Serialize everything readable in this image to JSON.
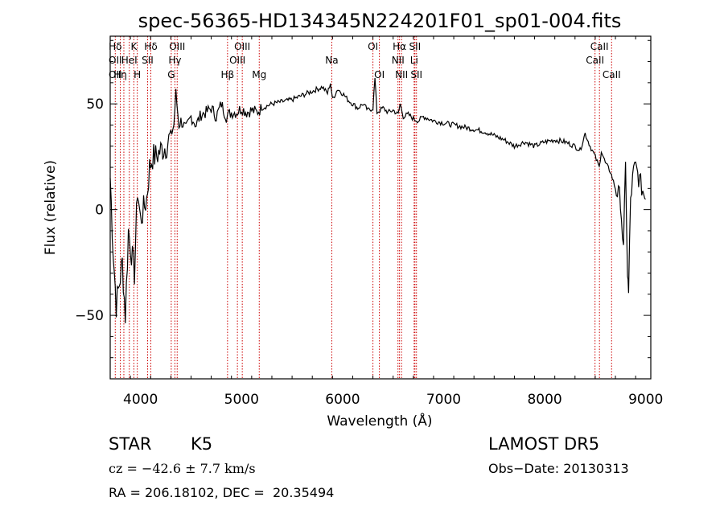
{
  "chart_data": {
    "type": "line",
    "title": "spec-56365-HD134345N224201F01_sp01-004.fits",
    "xlabel": "Wavelength (Å)",
    "ylabel": "Flux (relative)",
    "xlim": [
      3700,
      9050
    ],
    "ylim": [
      -80,
      82
    ],
    "xticks": [
      4000,
      5000,
      6000,
      7000,
      8000,
      9000
    ],
    "yticks": [
      -50,
      0,
      50
    ],
    "grid": false,
    "series": [
      {
        "values_note": "",
        "x": [
          3700,
          3730,
          3760,
          3790,
          3820,
          3850,
          3880,
          3910,
          3940,
          3970,
          4000,
          4030,
          4060,
          4090,
          4120,
          4150,
          4200,
          4250,
          4300,
          4330,
          4350,
          4380,
          4400,
          4450,
          4500,
          4550,
          4600,
          4650,
          4700,
          4750,
          4800,
          4850,
          4900,
          4950,
          5000,
          5050,
          5100,
          5150,
          5200,
          5300,
          5400,
          5500,
          5600,
          5700,
          5800,
          5850,
          5880,
          5900,
          5950,
          6000,
          6050,
          6100,
          6150,
          6200,
          6250,
          6300,
          6320,
          6340,
          6400,
          6450,
          6500,
          6550,
          6570,
          6600,
          6650,
          6700,
          6750,
          6800,
          6900,
          7000,
          7100,
          7200,
          7300,
          7400,
          7500,
          7600,
          7700,
          7800,
          7900,
          8000,
          8100,
          8200,
          8300,
          8350,
          8400,
          8450,
          8500,
          8540,
          8560,
          8600,
          8650,
          8700,
          8750,
          8780,
          8800,
          8820,
          8830,
          8850,
          8880,
          8900,
          8950,
          9000
        ],
        "y": [
          15,
          -20,
          -45,
          -35,
          -25,
          -50,
          -10,
          -20,
          -30,
          10,
          -5,
          0,
          5,
          20,
          25,
          25,
          28,
          30,
          35,
          40,
          55,
          40,
          42,
          38,
          44,
          40,
          45,
          46,
          48,
          44,
          50,
          44,
          46,
          46,
          48,
          46,
          47,
          46,
          48,
          50,
          51,
          52,
          54,
          56,
          58,
          55,
          60,
          52,
          57,
          55,
          52,
          50,
          48,
          50,
          47,
          48,
          62,
          46,
          48,
          46,
          47,
          45,
          50,
          44,
          45,
          43,
          42,
          44,
          42,
          41,
          40,
          39,
          38,
          37,
          35,
          33,
          30,
          32,
          30,
          32,
          33,
          32,
          30,
          28,
          36,
          30,
          25,
          20,
          28,
          22,
          18,
          10,
          5,
          -20,
          20,
          -30,
          -40,
          5,
          18,
          20,
          12,
          5
        ]
      }
    ],
    "lines": [
      {
        "x": 3750,
        "labels": [
          "Hδ",
          "OII",
          "OII"
        ]
      },
      {
        "x": 3800,
        "labels": [
          "",
          "",
          "Hη"
        ]
      },
      {
        "x": 3835,
        "labels": [
          "",
          "",
          ""
        ]
      },
      {
        "x": 3889,
        "labels": [
          "",
          "HeI",
          ""
        ]
      },
      {
        "x": 3934,
        "labels": [
          "K",
          "",
          ""
        ]
      },
      {
        "x": 3968,
        "labels": [
          "",
          "",
          "H"
        ]
      },
      {
        "x": 4070,
        "labels": [
          "",
          "SII",
          ""
        ]
      },
      {
        "x": 4102,
        "labels": [
          "Hδ",
          "",
          ""
        ]
      },
      {
        "x": 4304,
        "labels": [
          "",
          "",
          "G"
        ]
      },
      {
        "x": 4340,
        "labels": [
          "",
          "Hγ",
          ""
        ]
      },
      {
        "x": 4363,
        "labels": [
          "OIII",
          "",
          ""
        ]
      },
      {
        "x": 4861,
        "labels": [
          "",
          "",
          "Hβ"
        ]
      },
      {
        "x": 4959,
        "labels": [
          "",
          "OIII",
          ""
        ]
      },
      {
        "x": 5007,
        "labels": [
          "OIII",
          "",
          ""
        ]
      },
      {
        "x": 5175,
        "labels": [
          "",
          "",
          "Mg"
        ]
      },
      {
        "x": 5893,
        "labels": [
          "",
          "Na",
          ""
        ]
      },
      {
        "x": 6300,
        "labels": [
          "OI",
          "",
          ""
        ]
      },
      {
        "x": 6364,
        "labels": [
          "",
          "",
          "OI"
        ]
      },
      {
        "x": 6548,
        "labels": [
          "",
          "NII",
          ""
        ]
      },
      {
        "x": 6563,
        "labels": [
          "Hα",
          "",
          ""
        ]
      },
      {
        "x": 6583,
        "labels": [
          "",
          "",
          "NII"
        ]
      },
      {
        "x": 6708,
        "labels": [
          "",
          "Li",
          ""
        ]
      },
      {
        "x": 6716,
        "labels": [
          "SII",
          "",
          ""
        ]
      },
      {
        "x": 6731,
        "labels": [
          "",
          "",
          "SII"
        ]
      },
      {
        "x": 8498,
        "labels": [
          "",
          "CaII",
          ""
        ]
      },
      {
        "x": 8542,
        "labels": [
          "CaII",
          "",
          ""
        ]
      },
      {
        "x": 8662,
        "labels": [
          "",
          "",
          "CaII"
        ]
      }
    ]
  },
  "info": {
    "class": "STAR",
    "subclass": "K5",
    "survey": "LAMOST DR5",
    "cz": "cz = −42.6 ± 7.7 km/s",
    "obs_date": "Obs−Date: 20130313",
    "radec": "RA = 206.18102, DEC =  20.35494"
  },
  "colors": {
    "spectrum": "#000000",
    "lines": "#cc0000",
    "axes": "#000000"
  }
}
